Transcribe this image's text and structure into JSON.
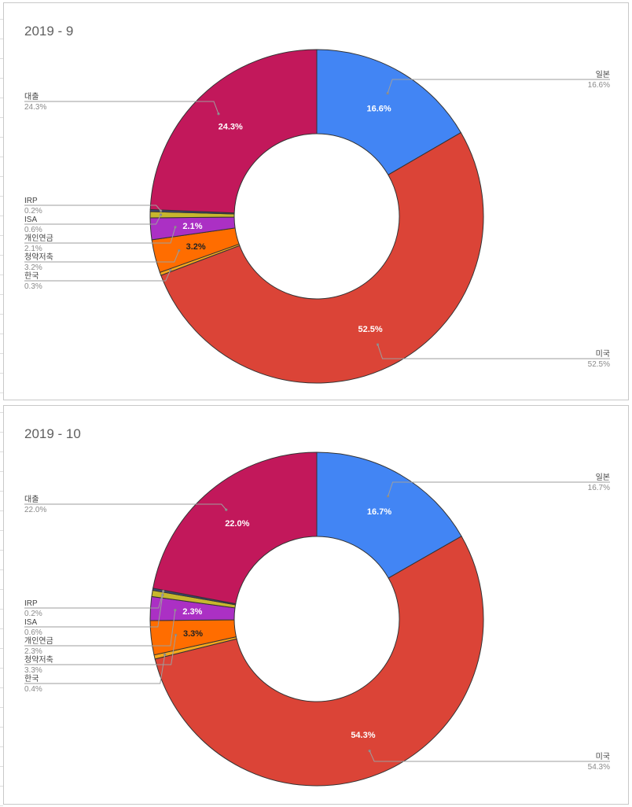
{
  "colors": {
    "미국": "#db4437",
    "일본": "#4285f4",
    "대출": "#c2185b",
    "IRP": "#3b4a7a",
    "ISA": "#c7b72e",
    "개인연금": "#ab30c4",
    "청약저축": "#ff6d00",
    "한국": "#f6a81c"
  },
  "chart_data": [
    {
      "type": "pie",
      "donut": true,
      "title": "2019 - 9",
      "slices": [
        {
          "label": "일본",
          "value": 16.6,
          "pct": "16.6%"
        },
        {
          "label": "미국",
          "value": 52.5,
          "pct": "52.5%"
        },
        {
          "label": "한국",
          "value": 0.3,
          "pct": "0.3%"
        },
        {
          "label": "청약저축",
          "value": 3.2,
          "pct": "3.2%"
        },
        {
          "label": "개인연금",
          "value": 2.1,
          "pct": "2.1%"
        },
        {
          "label": "ISA",
          "value": 0.6,
          "pct": "0.6%"
        },
        {
          "label": "IRP",
          "value": 0.2,
          "pct": "0.2%"
        },
        {
          "label": "대출",
          "value": 24.3,
          "pct": "24.3%"
        }
      ]
    },
    {
      "type": "pie",
      "donut": true,
      "title": "2019 - 10",
      "slices": [
        {
          "label": "일본",
          "value": 16.7,
          "pct": "16.7%"
        },
        {
          "label": "미국",
          "value": 54.3,
          "pct": "54.3%"
        },
        {
          "label": "한국",
          "value": 0.4,
          "pct": "0.4%"
        },
        {
          "label": "청약저축",
          "value": 3.3,
          "pct": "3.3%"
        },
        {
          "label": "개인연금",
          "value": 2.3,
          "pct": "2.3%"
        },
        {
          "label": "ISA",
          "value": 0.6,
          "pct": "0.6%"
        },
        {
          "label": "IRP",
          "value": 0.2,
          "pct": "0.2%"
        },
        {
          "label": "대출",
          "value": 22.0,
          "pct": "22.0%"
        }
      ]
    }
  ]
}
